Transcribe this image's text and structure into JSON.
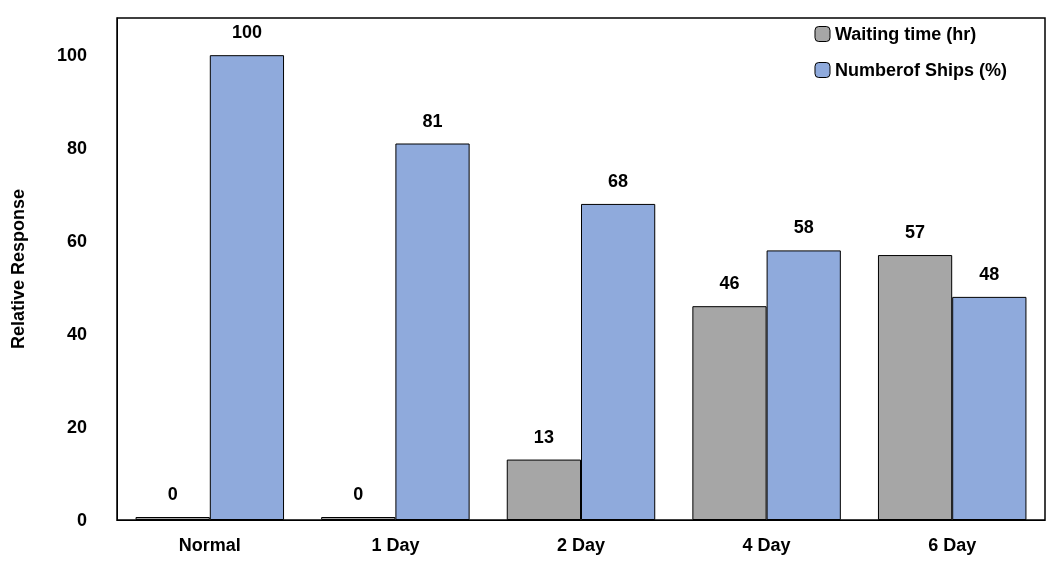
{
  "chart_data": {
    "type": "bar",
    "ylabel": "Relative Response",
    "categories": [
      "Normal",
      "1 Day",
      "2 Day",
      "4 Day",
      "6 Day"
    ],
    "series": [
      {
        "name": "Waiting time (hr)",
        "color": "#a6a6a6",
        "values": [
          0,
          0,
          13,
          46,
          57
        ]
      },
      {
        "name": "Numberof Ships (%)",
        "color": "#8faadc",
        "values": [
          100,
          81,
          68,
          58,
          48
        ]
      }
    ],
    "ylim": [
      0,
      108
    ],
    "yticks": [
      0,
      20,
      40,
      60,
      80,
      100
    ],
    "grid": false,
    "legend": "top right",
    "data_labels": true
  }
}
